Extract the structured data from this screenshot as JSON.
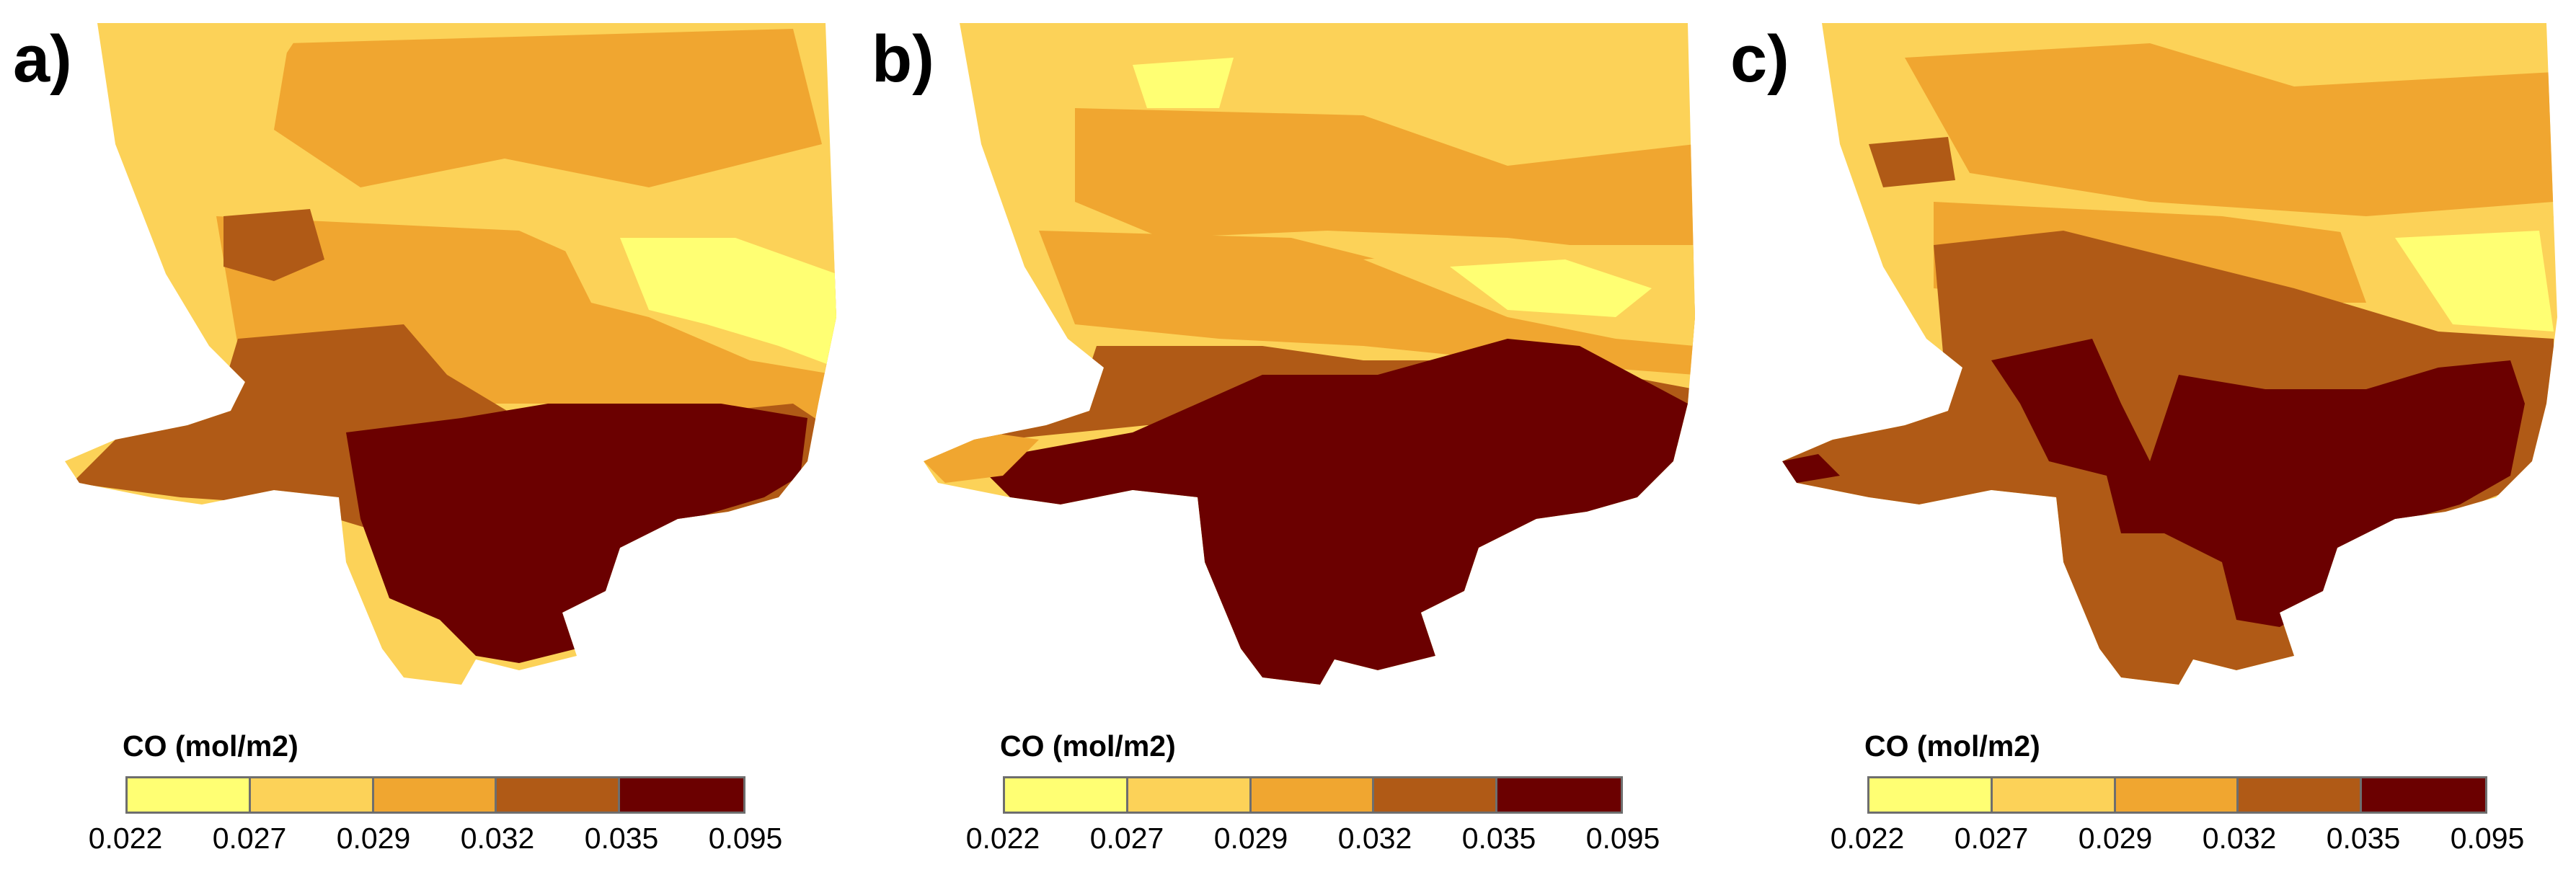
{
  "panels": [
    {
      "label": "a)",
      "legend_title": "CO (mol/m2)"
    },
    {
      "label": "b)",
      "legend_title": "CO (mol/m2)"
    },
    {
      "label": "c)",
      "legend_title": "CO (mol/m2)"
    }
  ],
  "legend": {
    "breaks": [
      "0.022",
      "0.027",
      "0.029",
      "0.032",
      "0.035",
      "0.095"
    ],
    "colors": [
      "#ffff73",
      "#fcd258",
      "#f0a630",
      "#b05a16",
      "#6b0000"
    ]
  }
}
